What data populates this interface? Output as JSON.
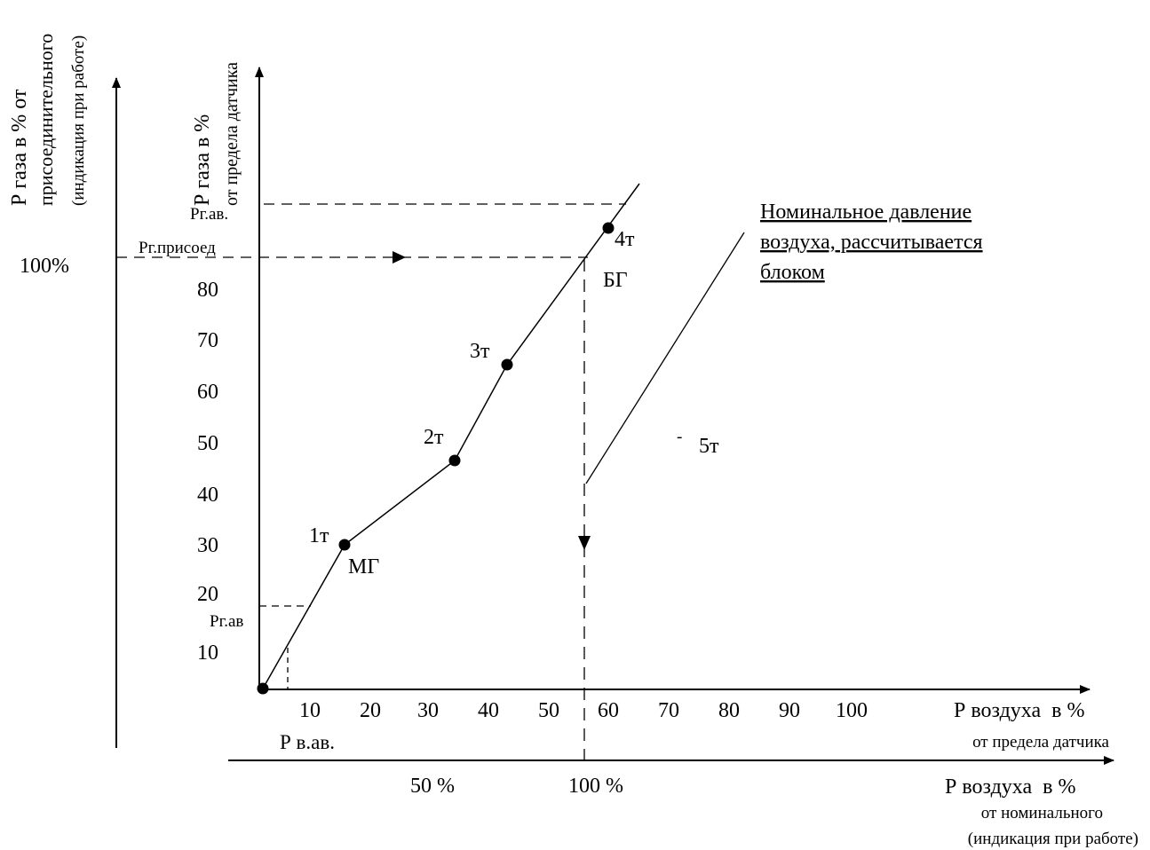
{
  "outer_axis": {
    "label_line1": "Р газа в % от",
    "label_line2": "присоединительного",
    "label_line3": "(индикация при работе)",
    "tick_100": "100%"
  },
  "inner_y_axis": {
    "label_line1": "Р газа  в %",
    "label_line2": "от предела датчика",
    "ticks": [
      "10",
      "20",
      "30",
      "40",
      "50",
      "60",
      "70",
      "80"
    ]
  },
  "x_axis_sensor": {
    "ticks": [
      "10",
      "20",
      "30",
      "40",
      "50",
      "60",
      "70",
      "80",
      "90",
      "100"
    ],
    "label_line1": "Р воздуха  в %",
    "label_line2": "от предела датчика"
  },
  "x_axis_nominal": {
    "ticks": [
      "50 %",
      "100 %"
    ],
    "label_line1": "Р воздуха  в %",
    "label_line2": "от номинального",
    "label_line3": "(индикация при работе)"
  },
  "annotations": {
    "p_g_av_top": "Рг.ав.",
    "p_g_prisoed": "Рг.присоед",
    "p_g_av_low": "Рг.ав",
    "p_v_av": "Р в.ав.",
    "mg": "МГ",
    "bg": "БГ",
    "dash": "-",
    "nominal_line1": "Номинальное давление",
    "nominal_line2": "воздуха, рассчитывается",
    "nominal_line3": "блоком"
  },
  "points": [
    {
      "label": "",
      "x": 0,
      "y": 0
    },
    {
      "label": "1т",
      "x": 16,
      "y": 29
    },
    {
      "label": "2т",
      "x": 37,
      "y": 45
    },
    {
      "label": "3т",
      "x": 47,
      "y": 63
    },
    {
      "label": "4т",
      "x": 67,
      "y": 91
    },
    {
      "label": "5т",
      "x": null,
      "y": null
    }
  ],
  "colors": {
    "ink": "#000000",
    "background": "#ffffff"
  }
}
